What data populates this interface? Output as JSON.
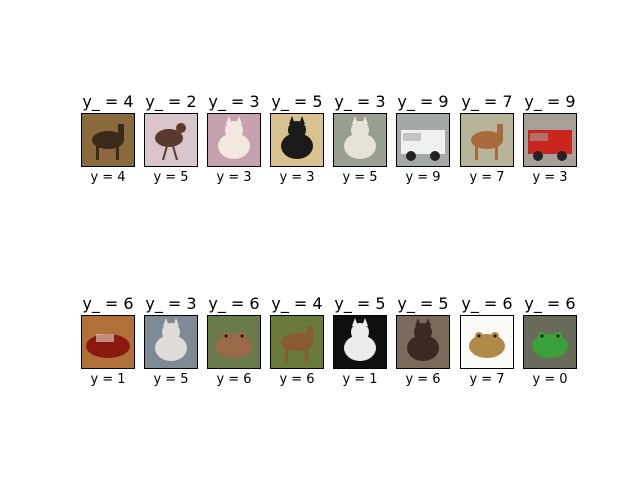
{
  "figure": {
    "rows": [
      {
        "panels": [
          {
            "title": "y_ = 4",
            "xlabel": "y = 4",
            "image_icon": "deer-icon",
            "colors": {
              "bg": "#8a6a3c",
              "fg": "#3a2a1a"
            }
          },
          {
            "title": "y_ = 2",
            "xlabel": "y = 5",
            "image_icon": "bird-icon",
            "colors": {
              "bg": "#d8c6cc",
              "fg": "#5a3a2a"
            }
          },
          {
            "title": "y_ = 3",
            "xlabel": "y = 3",
            "image_icon": "cat-icon",
            "colors": {
              "bg": "#c7a1b0",
              "fg": "#f2e8e0"
            }
          },
          {
            "title": "y_ = 5",
            "xlabel": "y = 3",
            "image_icon": "dog-icon",
            "colors": {
              "bg": "#d8c28f",
              "fg": "#1a1a1a"
            }
          },
          {
            "title": "y_ = 3",
            "xlabel": "y = 5",
            "image_icon": "cat-icon",
            "colors": {
              "bg": "#9aa08e",
              "fg": "#e6e2d6"
            }
          },
          {
            "title": "y_ = 9",
            "xlabel": "y = 9",
            "image_icon": "truck-icon",
            "colors": {
              "bg": "#a4a8a8",
              "fg": "#f0f0f0"
            }
          },
          {
            "title": "y_ = 7",
            "xlabel": "y = 7",
            "image_icon": "horse-icon",
            "colors": {
              "bg": "#b8b49a",
              "fg": "#a86a3a"
            }
          },
          {
            "title": "y_ = 9",
            "xlabel": "y = 3",
            "image_icon": "fire-truck-icon",
            "colors": {
              "bg": "#a8a098",
              "fg": "#c8261e"
            }
          }
        ]
      },
      {
        "panels": [
          {
            "title": "y_ = 6",
            "xlabel": "y = 1",
            "image_icon": "car-icon",
            "colors": {
              "bg": "#b07038",
              "fg": "#8a1a10"
            }
          },
          {
            "title": "y_ = 3",
            "xlabel": "y = 5",
            "image_icon": "cat-icon",
            "colors": {
              "bg": "#7e8a96",
              "fg": "#e0dcd8"
            }
          },
          {
            "title": "y_ = 6",
            "xlabel": "y = 6",
            "image_icon": "frog-icon",
            "colors": {
              "bg": "#6a7a4a",
              "fg": "#9a6a48"
            }
          },
          {
            "title": "y_ = 4",
            "xlabel": "y = 6",
            "image_icon": "deer-icon",
            "colors": {
              "bg": "#6a7a3a",
              "fg": "#8a5a30"
            }
          },
          {
            "title": "y_ = 5",
            "xlabel": "y = 1",
            "image_icon": "dog-icon",
            "colors": {
              "bg": "#101010",
              "fg": "#ececec"
            }
          },
          {
            "title": "y_ = 5",
            "xlabel": "y = 6",
            "image_icon": "dog-icon",
            "colors": {
              "bg": "#7a6a5a",
              "fg": "#3a2a22"
            }
          },
          {
            "title": "y_ = 6",
            "xlabel": "y = 7",
            "image_icon": "frog-icon",
            "colors": {
              "bg": "#fafaf6",
              "fg": "#b08a48"
            }
          },
          {
            "title": "y_ = 6",
            "xlabel": "y = 0",
            "image_icon": "frog-icon",
            "colors": {
              "bg": "#6a6a5a",
              "fg": "#3aa03a"
            }
          }
        ]
      }
    ]
  }
}
